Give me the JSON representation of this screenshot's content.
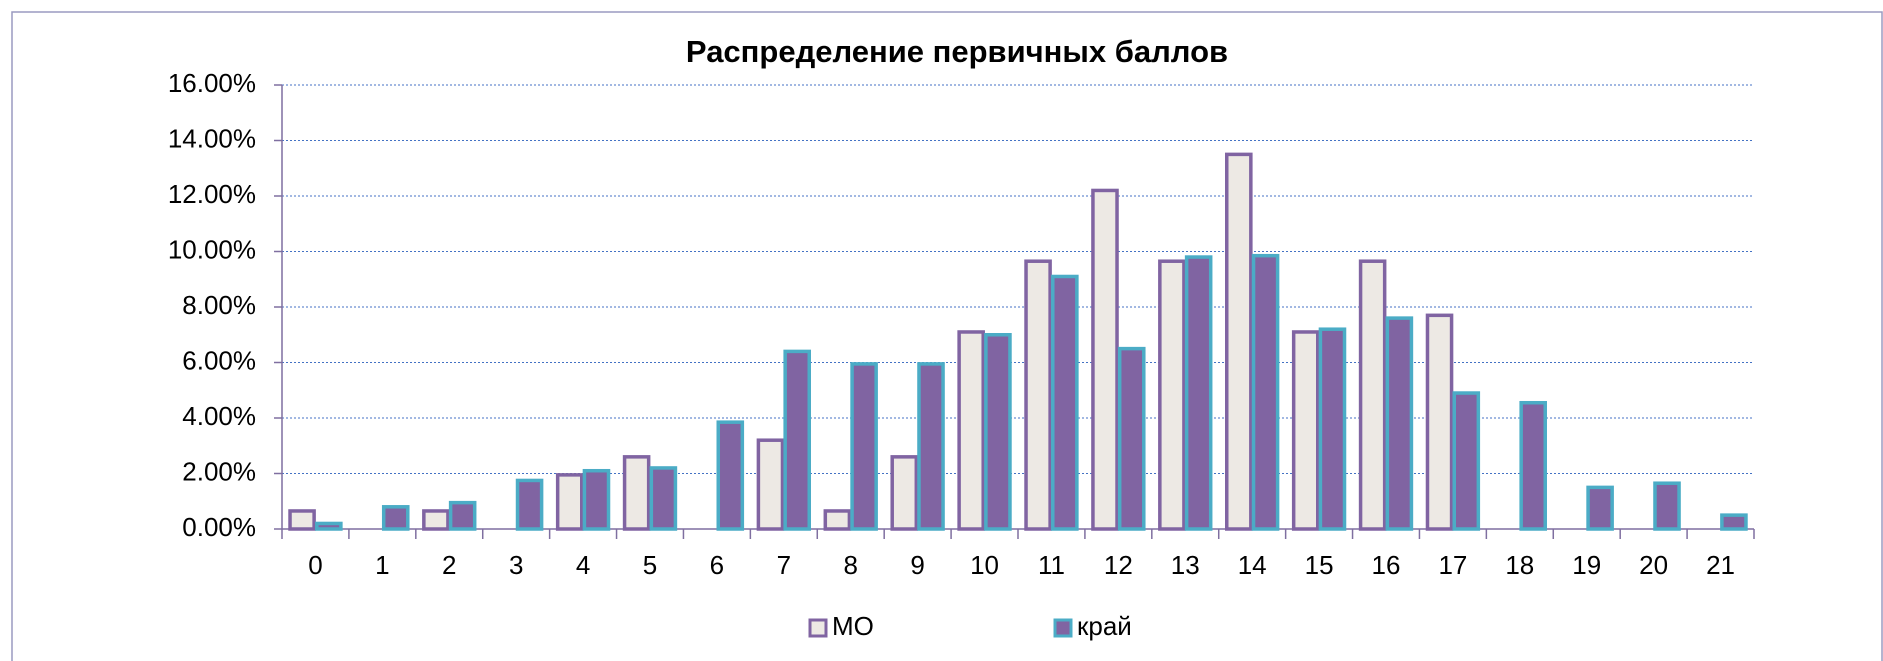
{
  "chart_data": {
    "type": "bar",
    "title": "Распределение первичных баллов",
    "categories": [
      "0",
      "1",
      "2",
      "3",
      "4",
      "5",
      "6",
      "7",
      "8",
      "9",
      "10",
      "11",
      "12",
      "13",
      "14",
      "15",
      "16",
      "17",
      "18",
      "19",
      "20",
      "21"
    ],
    "series": [
      {
        "name": "МО",
        "color": "#ede9e4",
        "edge_color": "#8064a2",
        "values": [
          0.65,
          0,
          0.65,
          0,
          1.95,
          2.6,
          0,
          3.2,
          0.65,
          2.6,
          7.1,
          9.65,
          12.2,
          9.65,
          13.5,
          7.1,
          9.65,
          7.7,
          0,
          0,
          0,
          0
        ]
      },
      {
        "name": "край",
        "color": "#8064a2",
        "edge_color": "#4bacc6",
        "values": [
          0.2,
          0.8,
          0.95,
          1.75,
          2.1,
          2.2,
          3.85,
          6.4,
          5.95,
          5.95,
          7.0,
          9.1,
          6.5,
          9.8,
          9.85,
          7.2,
          7.6,
          4.9,
          4.55,
          1.5,
          1.65,
          0.5
        ]
      }
    ],
    "ylim": [
      0,
      16
    ],
    "yticks": [
      {
        "value": 0,
        "label": "0.00%"
      },
      {
        "value": 2,
        "label": "2.00%"
      },
      {
        "value": 4,
        "label": "4.00%"
      },
      {
        "value": 6,
        "label": "6.00%"
      },
      {
        "value": 8,
        "label": "8.00%"
      },
      {
        "value": 10,
        "label": "10.00%"
      },
      {
        "value": 12,
        "label": "12.00%"
      },
      {
        "value": 14,
        "label": "14.00%"
      },
      {
        "value": 16,
        "label": "16.00%"
      }
    ],
    "grid": true,
    "legend": "bottom"
  }
}
